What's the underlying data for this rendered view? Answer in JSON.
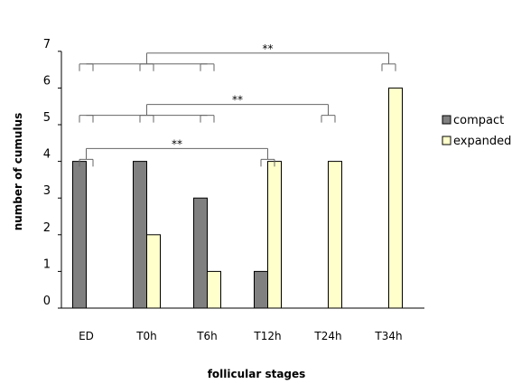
{
  "chart_data": {
    "type": "bar",
    "title": "",
    "xlabel": "follicular stages",
    "ylabel": "number of cumulus",
    "categories": [
      "ED",
      "T0h",
      "T6h",
      "T12h",
      "T24h",
      "T34h"
    ],
    "series": [
      {
        "name": "compact",
        "values": [
          4,
          4,
          3,
          1,
          0,
          0
        ],
        "color": "#808080"
      },
      {
        "name": "expanded",
        "values": [
          0,
          2,
          1,
          4,
          4,
          6
        ],
        "color": "#ffffcc"
      }
    ],
    "ylim": [
      0,
      7
    ],
    "yticks": [
      0,
      1,
      2,
      3,
      4,
      5,
      6,
      7
    ],
    "grid": false,
    "legend": "right",
    "annotations": [
      {
        "label": "**",
        "groups": [
          0,
          1,
          2
        ],
        "vs": 5,
        "level": 7
      },
      {
        "label": "**",
        "groups": [
          0,
          1,
          2
        ],
        "vs": 4,
        "level": 5.6
      },
      {
        "label": "**",
        "groups": [
          0
        ],
        "vs": 3,
        "level": 4.4
      }
    ]
  }
}
